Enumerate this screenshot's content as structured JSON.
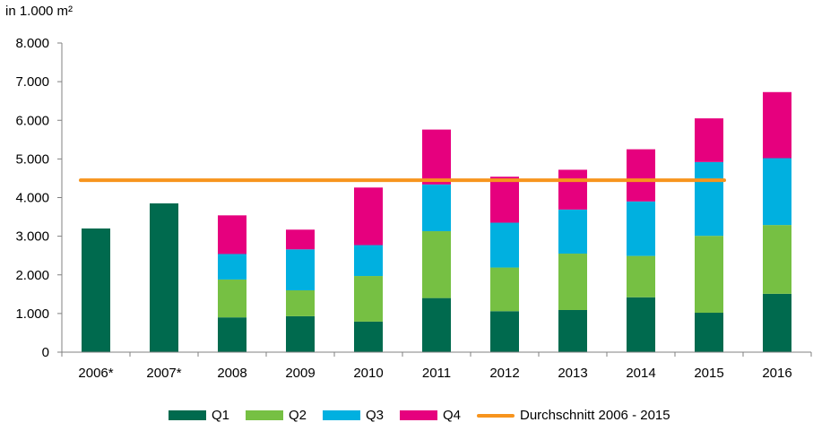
{
  "chart_data": {
    "type": "bar",
    "stacked": true,
    "unit_label": "in 1.000 m²",
    "categories": [
      "2006*",
      "2007*",
      "2008",
      "2009",
      "2010",
      "2011",
      "2012",
      "2013",
      "2014",
      "2015",
      "2016"
    ],
    "series": [
      {
        "name": "Q1",
        "color": "#006a4e",
        "values": [
          3200,
          3850,
          900,
          930,
          790,
          1400,
          1060,
          1090,
          1420,
          1020,
          1510
        ]
      },
      {
        "name": "Q2",
        "color": "#76c043",
        "values": [
          0,
          0,
          980,
          670,
          1180,
          1730,
          1130,
          1460,
          1070,
          1990,
          1780
        ]
      },
      {
        "name": "Q3",
        "color": "#00b0e0",
        "values": [
          0,
          0,
          660,
          1060,
          800,
          1210,
          1160,
          1140,
          1410,
          1910,
          1730
        ]
      },
      {
        "name": "Q4",
        "color": "#e6007e",
        "values": [
          0,
          0,
          1000,
          510,
          1490,
          1420,
          1190,
          1030,
          1350,
          1130,
          1710
        ]
      }
    ],
    "average_line": {
      "name": "Durchschnitt 2006 - 2015",
      "color": "#f7941d",
      "value": 4450,
      "from": "2006*",
      "to": "2015"
    },
    "ylim": [
      0,
      8000
    ],
    "yticks": [
      0,
      1000,
      2000,
      3000,
      4000,
      5000,
      6000,
      7000,
      8000
    ],
    "ytick_labels": [
      "0",
      "1.000",
      "2.000",
      "3.000",
      "4.000",
      "5.000",
      "6.000",
      "7.000",
      "8.000"
    ],
    "legend_position": "bottom",
    "grid": false
  },
  "legend": {
    "q1": "Q1",
    "q2": "Q2",
    "q3": "Q3",
    "q4": "Q4",
    "avg": "Durchschnitt 2006 - 2015"
  }
}
